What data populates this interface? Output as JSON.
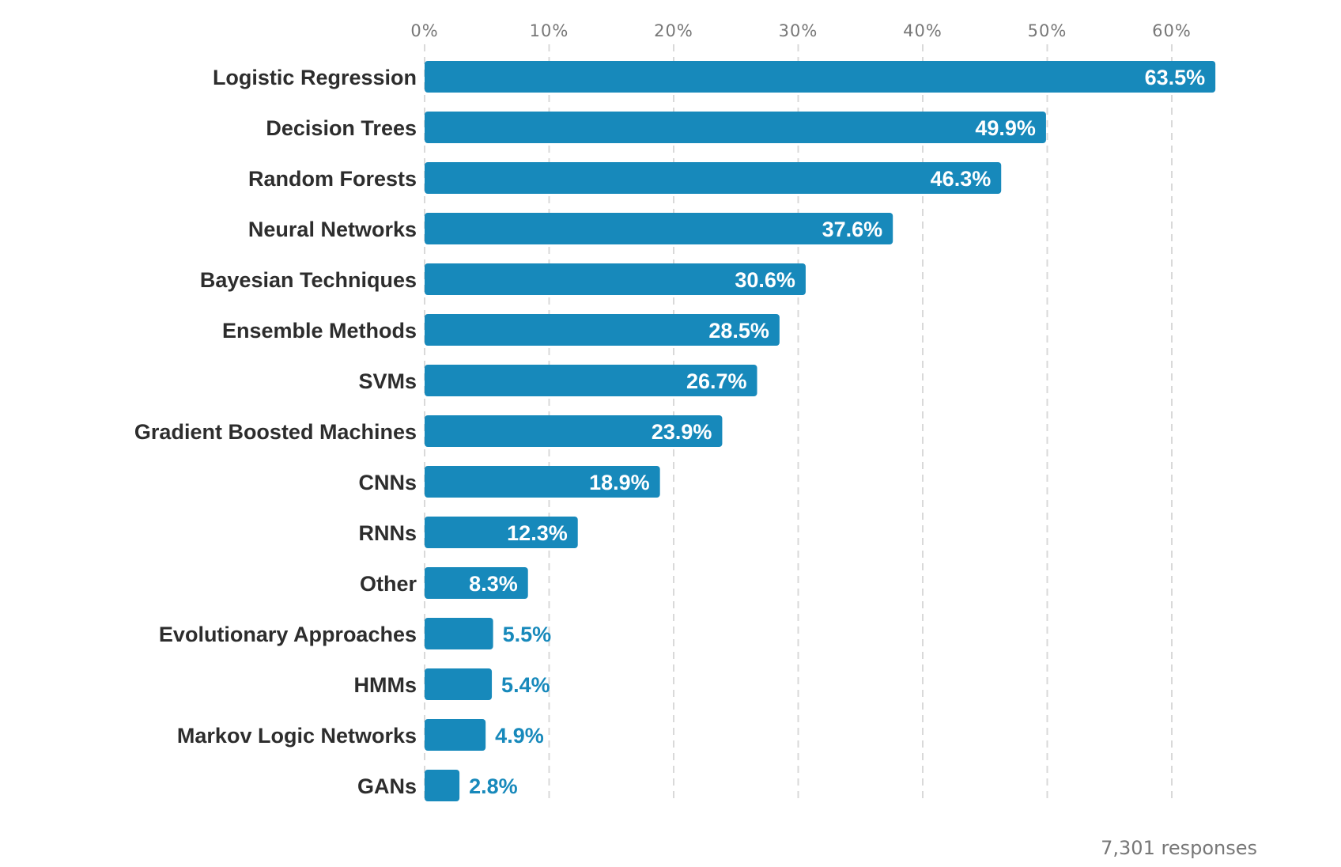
{
  "chart_data": {
    "type": "bar",
    "orientation": "horizontal",
    "categories": [
      "Logistic Regression",
      "Decision Trees",
      "Random Forests",
      "Neural Networks",
      "Bayesian Techniques",
      "Ensemble Methods",
      "SVMs",
      "Gradient Boosted Machines",
      "CNNs",
      "RNNs",
      "Other",
      "Evolutionary Approaches",
      "HMMs",
      "Markov Logic Networks",
      "GANs"
    ],
    "values": [
      63.5,
      49.9,
      46.3,
      37.6,
      30.6,
      28.5,
      26.7,
      23.9,
      18.9,
      12.3,
      8.3,
      5.5,
      5.4,
      4.9,
      2.8
    ],
    "value_labels": [
      "63.5%",
      "49.9%",
      "46.3%",
      "37.6%",
      "30.6%",
      "28.5%",
      "26.7%",
      "23.9%",
      "18.9%",
      "12.3%",
      "8.3%",
      "5.5%",
      "5.4%",
      "4.9%",
      "2.8%"
    ],
    "x_ticks": [
      "0%",
      "10%",
      "20%",
      "30%",
      "40%",
      "50%",
      "60%"
    ],
    "xlim": [
      0,
      60
    ],
    "grid": true,
    "grid_style": "dashed",
    "axis_position": "top",
    "footnote": "7,301 responses",
    "colors": {
      "bar": "#1789bb",
      "label_inside": "#ffffff",
      "label_outside": "#1789bb",
      "category_text": "#2d2d2d",
      "tick_text": "#777777",
      "grid": "#d9d9d9"
    }
  }
}
